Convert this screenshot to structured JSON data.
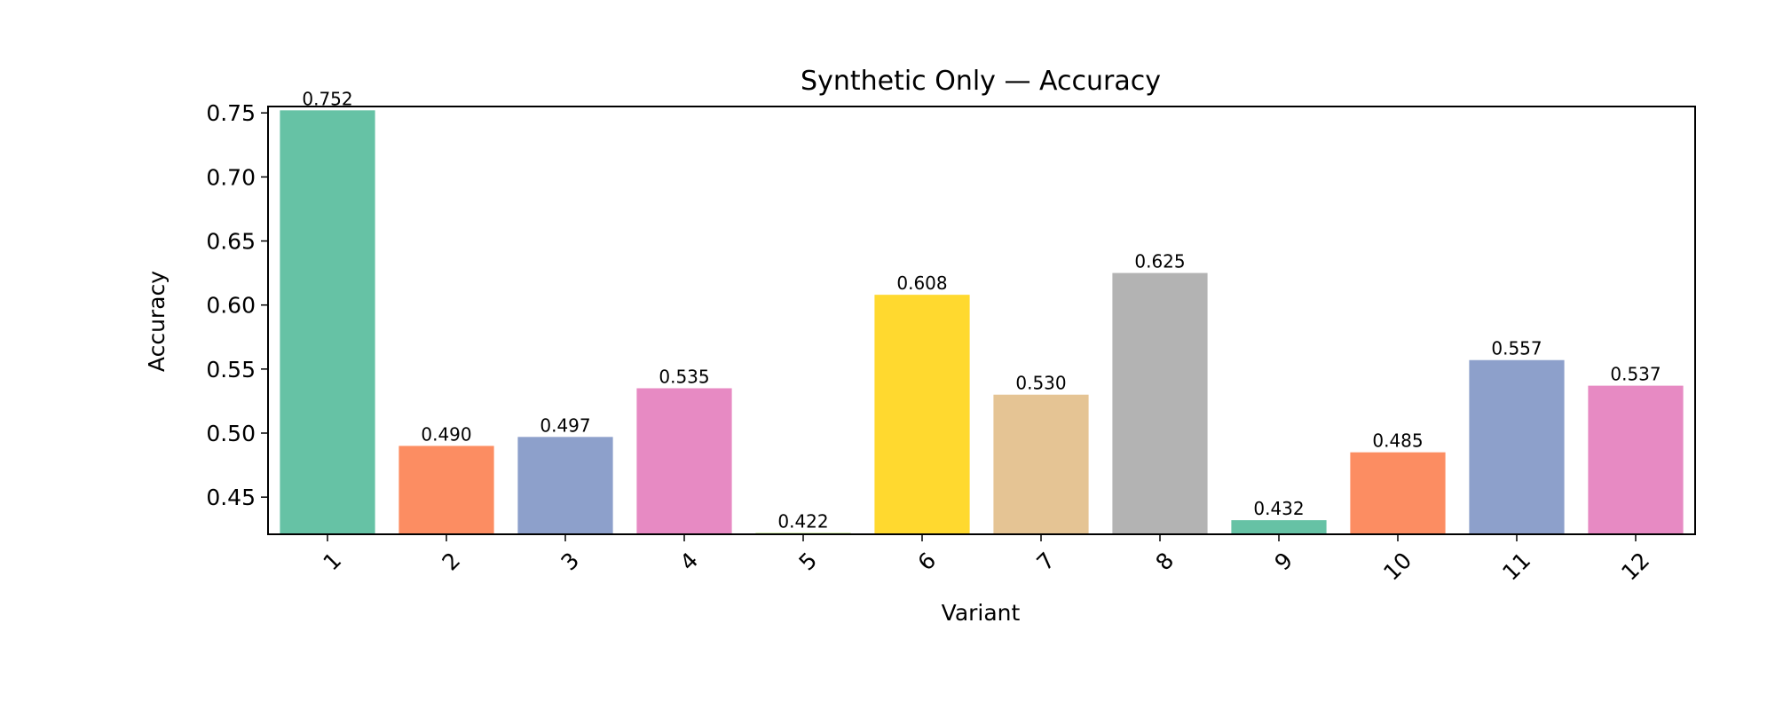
{
  "chart_data": {
    "type": "bar",
    "title": "Synthetic Only — Accuracy",
    "xlabel": "Variant",
    "ylabel": "Accuracy",
    "categories": [
      "1",
      "2",
      "3",
      "4",
      "5",
      "6",
      "7",
      "8",
      "9",
      "10",
      "11",
      "12"
    ],
    "values": [
      0.752,
      0.49,
      0.497,
      0.535,
      0.422,
      0.608,
      0.53,
      0.625,
      0.432,
      0.485,
      0.557,
      0.537
    ],
    "data_labels": [
      "0.752",
      "0.490",
      "0.497",
      "0.535",
      "0.422",
      "0.608",
      "0.530",
      "0.625",
      "0.432",
      "0.485",
      "0.557",
      "0.537"
    ],
    "colors": [
      "#66c2a5",
      "#fc8d62",
      "#8da0cb",
      "#e78ac3",
      "#a6d854",
      "#ffd92f",
      "#e5c494",
      "#b3b3b3",
      "#66c2a5",
      "#fc8d62",
      "#8da0cb",
      "#e78ac3"
    ],
    "ylim": [
      0.421,
      0.755
    ],
    "yticks": [
      0.45,
      0.5,
      0.55,
      0.6,
      0.65,
      0.7,
      0.75
    ],
    "ytick_labels": [
      "0.45",
      "0.50",
      "0.55",
      "0.60",
      "0.65",
      "0.70",
      "0.75"
    ],
    "grid": false,
    "legend": "none"
  }
}
